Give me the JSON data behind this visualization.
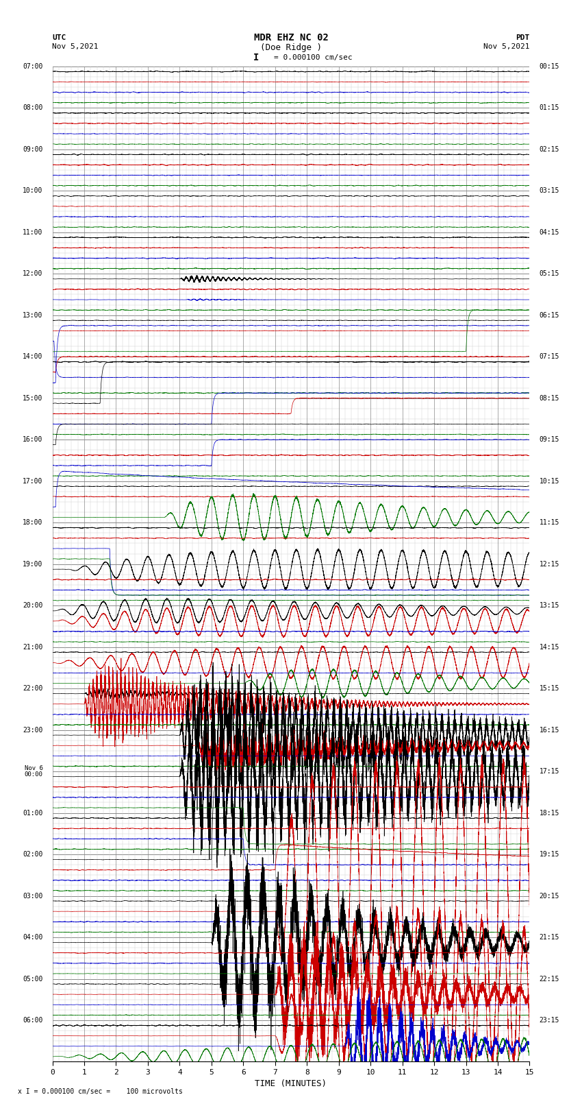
{
  "title_line1": "MDR EHZ NC 02",
  "title_line2": "(Doe Ridge )",
  "scale_label": "I = 0.000100 cm/sec",
  "utc_label": "UTC\nNov 5,2021",
  "pdt_label": "PDT\nNov 5,2021",
  "xlabel": "TIME (MINUTES)",
  "bottom_note": "x I = 0.000100 cm/sec =    100 microvolts",
  "xlim": [
    0,
    15
  ],
  "xticks": [
    0,
    1,
    2,
    3,
    4,
    5,
    6,
    7,
    8,
    9,
    10,
    11,
    12,
    13,
    14,
    15
  ],
  "bg_color": "#ffffff",
  "plot_bg_color": "#ffffff",
  "grid_color": "#aaaaaa",
  "colors": {
    "black": "#000000",
    "red": "#cc0000",
    "blue": "#0000cc",
    "green": "#007700"
  },
  "left_labels": [
    "07:00",
    "08:00",
    "09:00",
    "10:00",
    "11:00",
    "12:00",
    "13:00",
    "14:00",
    "15:00",
    "16:00",
    "17:00",
    "18:00",
    "19:00",
    "20:00",
    "21:00",
    "22:00",
    "23:00",
    "Nov 6\n00:00",
    "01:00",
    "02:00",
    "03:00",
    "04:00",
    "05:00",
    "06:00"
  ],
  "right_labels": [
    "00:15",
    "01:15",
    "02:15",
    "03:15",
    "04:15",
    "05:15",
    "06:15",
    "07:15",
    "08:15",
    "09:15",
    "10:15",
    "11:15",
    "12:15",
    "13:15",
    "14:15",
    "15:15",
    "16:15",
    "17:15",
    "18:15",
    "19:15",
    "20:15",
    "21:15",
    "22:15",
    "23:15"
  ]
}
